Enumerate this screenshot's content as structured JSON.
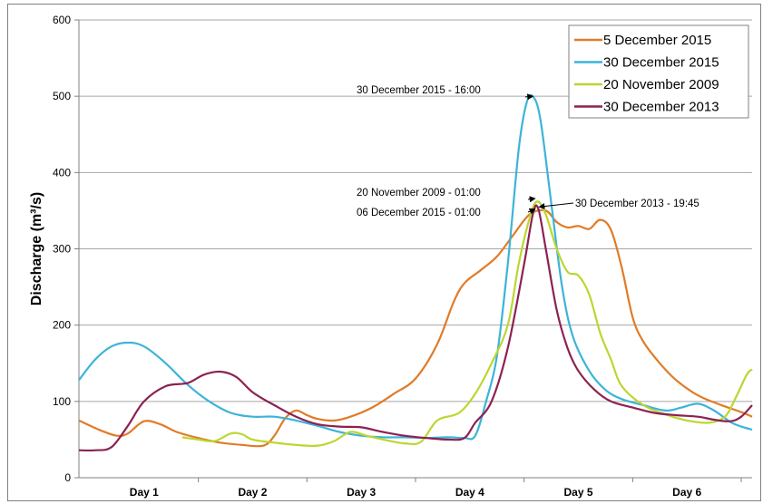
{
  "chart_data": {
    "type": "line",
    "ylabel": "Discharge (m³/s)",
    "xlabel": "",
    "ylim": [
      0,
      600
    ],
    "yticks": [
      0,
      100,
      200,
      300,
      400,
      500,
      600
    ],
    "xlim": [
      0,
      6.2
    ],
    "xtick_labels": [
      "Day 1",
      "Day 2",
      "Day 3",
      "Day 4",
      "Day 5",
      "Day 6"
    ],
    "grid": "horizontal",
    "legend_position": "top-right",
    "series": [
      {
        "name": "5 December 2015",
        "color": "#E07B28",
        "points": [
          [
            0,
            75
          ],
          [
            0.2,
            62
          ],
          [
            0.35,
            55
          ],
          [
            0.45,
            58
          ],
          [
            0.6,
            74
          ],
          [
            0.75,
            70
          ],
          [
            0.9,
            60
          ],
          [
            1.1,
            52
          ],
          [
            1.3,
            46
          ],
          [
            1.5,
            43
          ],
          [
            1.7,
            42
          ],
          [
            1.8,
            55
          ],
          [
            1.9,
            78
          ],
          [
            2.0,
            88
          ],
          [
            2.1,
            82
          ],
          [
            2.2,
            77
          ],
          [
            2.35,
            75
          ],
          [
            2.5,
            80
          ],
          [
            2.7,
            92
          ],
          [
            2.9,
            110
          ],
          [
            3.1,
            130
          ],
          [
            3.3,
            175
          ],
          [
            3.45,
            230
          ],
          [
            3.55,
            255
          ],
          [
            3.7,
            272
          ],
          [
            3.85,
            290
          ],
          [
            4.0,
            318
          ],
          [
            4.15,
            345
          ],
          [
            4.3,
            350
          ],
          [
            4.4,
            335
          ],
          [
            4.5,
            328
          ],
          [
            4.6,
            330
          ],
          [
            4.7,
            326
          ],
          [
            4.8,
            338
          ],
          [
            4.9,
            325
          ],
          [
            5.0,
            275
          ],
          [
            5.1,
            210
          ],
          [
            5.2,
            178
          ],
          [
            5.35,
            150
          ],
          [
            5.5,
            128
          ],
          [
            5.7,
            108
          ],
          [
            5.9,
            96
          ],
          [
            6.1,
            86
          ],
          [
            6.2,
            80
          ]
        ]
      },
      {
        "name": "30 December 2015",
        "color": "#3CB4D8",
        "points": [
          [
            0,
            128
          ],
          [
            0.15,
            155
          ],
          [
            0.3,
            172
          ],
          [
            0.45,
            177
          ],
          [
            0.6,
            172
          ],
          [
            0.8,
            150
          ],
          [
            1.0,
            122
          ],
          [
            1.2,
            100
          ],
          [
            1.4,
            85
          ],
          [
            1.6,
            80
          ],
          [
            1.8,
            80
          ],
          [
            2.0,
            75
          ],
          [
            2.2,
            68
          ],
          [
            2.4,
            60
          ],
          [
            2.6,
            55
          ],
          [
            2.8,
            53
          ],
          [
            3.0,
            53
          ],
          [
            3.2,
            52
          ],
          [
            3.4,
            53
          ],
          [
            3.55,
            52
          ],
          [
            3.65,
            55
          ],
          [
            3.75,
            100
          ],
          [
            3.85,
            160
          ],
          [
            3.95,
            280
          ],
          [
            4.05,
            430
          ],
          [
            4.12,
            490
          ],
          [
            4.18,
            500
          ],
          [
            4.25,
            470
          ],
          [
            4.35,
            360
          ],
          [
            4.45,
            250
          ],
          [
            4.55,
            185
          ],
          [
            4.7,
            140
          ],
          [
            4.85,
            115
          ],
          [
            5.0,
            103
          ],
          [
            5.2,
            95
          ],
          [
            5.4,
            88
          ],
          [
            5.55,
            92
          ],
          [
            5.7,
            97
          ],
          [
            5.85,
            88
          ],
          [
            6.0,
            73
          ],
          [
            6.1,
            67
          ],
          [
            6.2,
            63
          ]
        ]
      },
      {
        "name": "20 November 2009",
        "color": "#BCD630",
        "points": [
          [
            0.95,
            53
          ],
          [
            1.1,
            50
          ],
          [
            1.25,
            48
          ],
          [
            1.4,
            58
          ],
          [
            1.5,
            57
          ],
          [
            1.6,
            50
          ],
          [
            1.8,
            46
          ],
          [
            2.0,
            43
          ],
          [
            2.2,
            42
          ],
          [
            2.35,
            48
          ],
          [
            2.5,
            60
          ],
          [
            2.65,
            55
          ],
          [
            2.8,
            50
          ],
          [
            3.0,
            45
          ],
          [
            3.15,
            47
          ],
          [
            3.3,
            75
          ],
          [
            3.5,
            85
          ],
          [
            3.65,
            110
          ],
          [
            3.8,
            150
          ],
          [
            3.95,
            200
          ],
          [
            4.05,
            280
          ],
          [
            4.15,
            340
          ],
          [
            4.22,
            362
          ],
          [
            4.3,
            345
          ],
          [
            4.4,
            300
          ],
          [
            4.5,
            270
          ],
          [
            4.6,
            265
          ],
          [
            4.7,
            240
          ],
          [
            4.8,
            190
          ],
          [
            4.9,
            155
          ],
          [
            5.0,
            120
          ],
          [
            5.2,
            95
          ],
          [
            5.4,
            83
          ],
          [
            5.6,
            75
          ],
          [
            5.8,
            72
          ],
          [
            5.95,
            80
          ],
          [
            6.05,
            105
          ],
          [
            6.15,
            135
          ],
          [
            6.2,
            142
          ]
        ]
      },
      {
        "name": "30 December 2013",
        "color": "#8B2252",
        "points": [
          [
            0,
            36
          ],
          [
            0.15,
            36
          ],
          [
            0.3,
            40
          ],
          [
            0.45,
            68
          ],
          [
            0.6,
            100
          ],
          [
            0.8,
            120
          ],
          [
            1.0,
            124
          ],
          [
            1.15,
            135
          ],
          [
            1.3,
            139
          ],
          [
            1.45,
            132
          ],
          [
            1.6,
            112
          ],
          [
            1.8,
            95
          ],
          [
            2.0,
            80
          ],
          [
            2.2,
            70
          ],
          [
            2.4,
            67
          ],
          [
            2.6,
            66
          ],
          [
            2.8,
            60
          ],
          [
            3.0,
            55
          ],
          [
            3.2,
            52
          ],
          [
            3.4,
            50
          ],
          [
            3.55,
            52
          ],
          [
            3.65,
            72
          ],
          [
            3.8,
            100
          ],
          [
            3.95,
            170
          ],
          [
            4.1,
            280
          ],
          [
            4.18,
            345
          ],
          [
            4.23,
            353
          ],
          [
            4.3,
            300
          ],
          [
            4.4,
            220
          ],
          [
            4.5,
            170
          ],
          [
            4.6,
            140
          ],
          [
            4.75,
            115
          ],
          [
            4.9,
            100
          ],
          [
            5.1,
            92
          ],
          [
            5.3,
            85
          ],
          [
            5.5,
            82
          ],
          [
            5.7,
            80
          ],
          [
            5.85,
            76
          ],
          [
            6.0,
            74
          ],
          [
            6.1,
            80
          ],
          [
            6.2,
            95
          ]
        ]
      }
    ],
    "annotations": [
      {
        "text": "30 December 2015 - 16:00",
        "target_x": 4.18,
        "target_y": 500
      },
      {
        "text": "20 November 2009 - 01:00",
        "target_x": 4.2,
        "target_y": 366
      },
      {
        "text": "30 December 2013 - 19:45",
        "target_x": 4.24,
        "target_y": 355
      },
      {
        "text": "06 December 2015 - 01:00",
        "target_x": 4.2,
        "target_y": 352
      }
    ]
  }
}
